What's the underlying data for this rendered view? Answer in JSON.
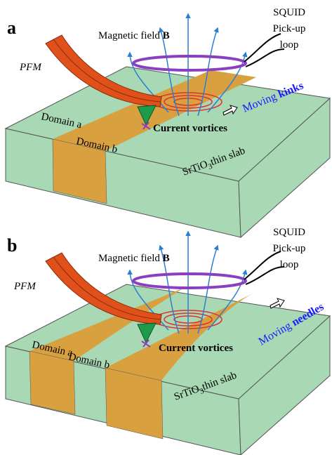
{
  "panels": [
    {
      "label": "a",
      "magnetic_field": "Magnetic field",
      "field_symbol": "B",
      "squid": [
        "SQUID",
        "Pick-up",
        "loop"
      ],
      "pfm": "PFM",
      "domain_a": "Domain a",
      "domain_b": "Domain b",
      "moving": "Moving",
      "moving_what": "kinks",
      "vortices": "Current vortices",
      "slab": "SrTiO",
      "slab_sub": "3",
      "slab_rest": "thin slab"
    },
    {
      "label": "b",
      "magnetic_field": "Magnetic field",
      "field_symbol": "B",
      "squid": [
        "SQUID",
        "Pick-up",
        "loop"
      ],
      "pfm": "PFM",
      "domain_a": "Domain a",
      "domain_b": "Domain b",
      "moving": "Moving",
      "moving_what": "needles",
      "vortices": "Current vortices",
      "slab": "SrTiO",
      "slab_sub": "3",
      "slab_rest": "thin slab"
    }
  ]
}
